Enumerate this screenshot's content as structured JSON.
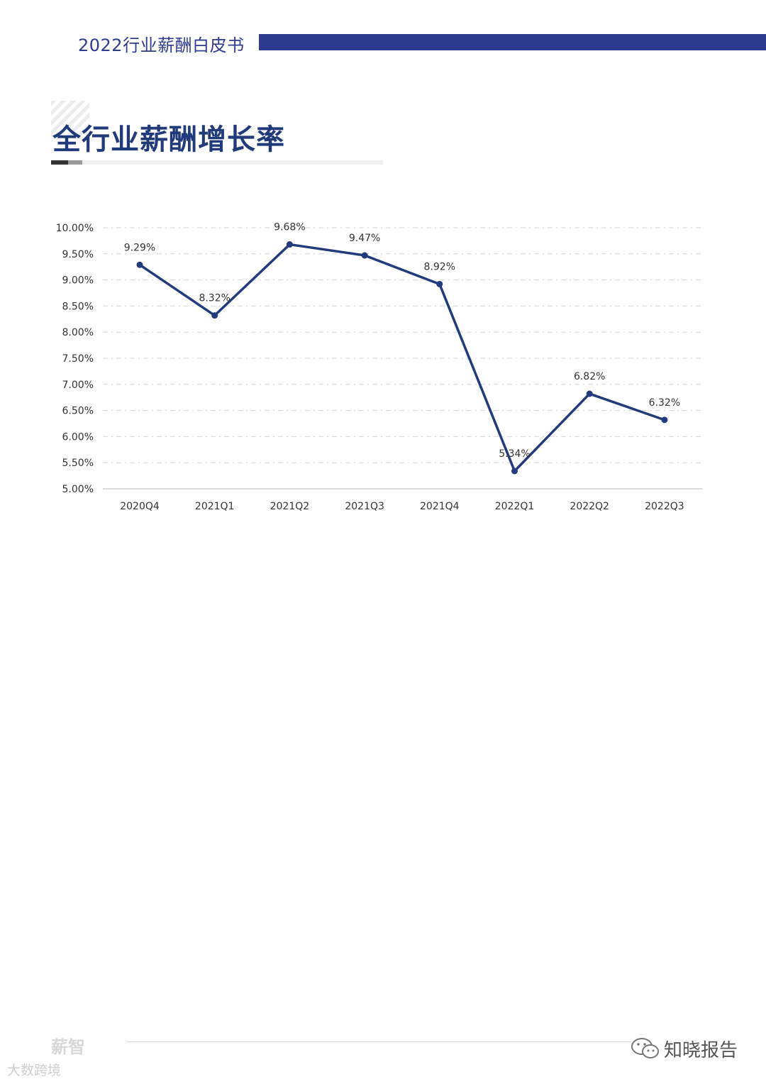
{
  "header": {
    "title": "2022行业薪酬白皮书"
  },
  "section": {
    "title": "全行业薪酬增长率"
  },
  "chart_data": {
    "type": "line",
    "categories": [
      "2020Q4",
      "2021Q1",
      "2021Q2",
      "2021Q3",
      "2021Q4",
      "2022Q1",
      "2022Q2",
      "2022Q3"
    ],
    "values": [
      9.29,
      8.32,
      9.68,
      9.47,
      8.92,
      5.34,
      6.82,
      6.32
    ],
    "data_labels": [
      "9.29%",
      "8.32%",
      "9.68%",
      "9.47%",
      "8.92%",
      "5.34%",
      "6.82%",
      "6.32%"
    ],
    "ylim": [
      5.0,
      10.0
    ],
    "yticks": [
      "5.00%",
      "5.50%",
      "6.00%",
      "6.50%",
      "7.00%",
      "7.50%",
      "8.00%",
      "8.50%",
      "9.00%",
      "9.50%",
      "10.00%"
    ],
    "grid": true,
    "line_color": "#233b7c"
  },
  "footer": {
    "logo": "薪智",
    "logo_sub": "大数跨境",
    "brand": "知晓报告"
  }
}
